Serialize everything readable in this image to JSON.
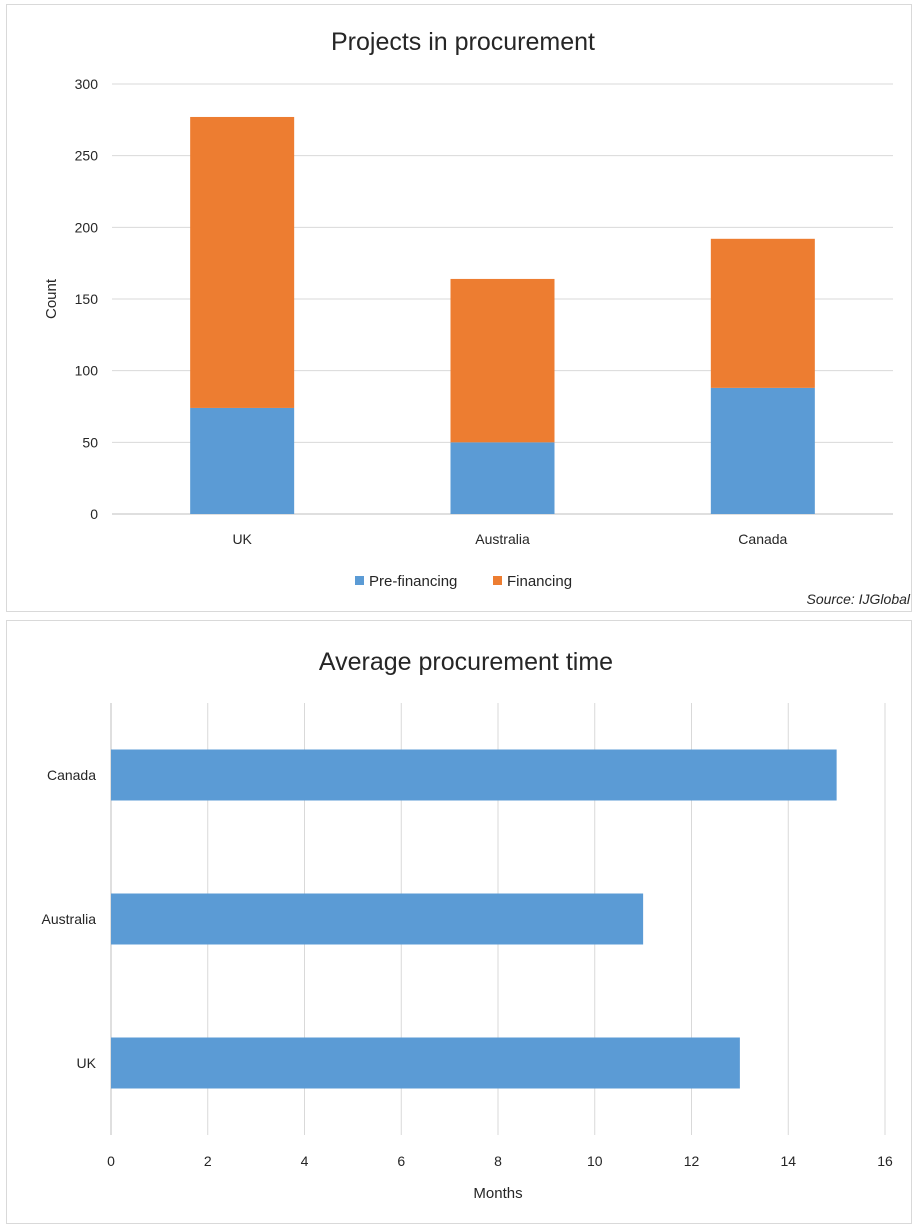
{
  "chart_data": [
    {
      "type": "bar",
      "orientation": "vertical",
      "stacked": true,
      "title": "Projects in procurement",
      "xlabel": "",
      "ylabel": "Count",
      "categories": [
        "UK",
        "Australia",
        "Canada"
      ],
      "series": [
        {
          "name": "Pre-financing",
          "color": "#5b9bd5",
          "values": [
            74,
            50,
            88
          ]
        },
        {
          "name": "Financing",
          "color": "#ed7d31",
          "values": [
            203,
            114,
            104
          ]
        }
      ],
      "ylim": [
        0,
        300
      ],
      "yticks": [
        0,
        50,
        100,
        150,
        200,
        250,
        300
      ],
      "grid": true,
      "legend_position": "bottom",
      "source_note": "Source: IJGlobal"
    },
    {
      "type": "bar",
      "orientation": "horizontal",
      "title": "Average procurement time",
      "xlabel": "Months",
      "ylabel": "",
      "categories": [
        "UK",
        "Australia",
        "Canada"
      ],
      "series": [
        {
          "color": "#5b9bd5",
          "values": [
            13,
            11,
            15
          ]
        }
      ],
      "xlim": [
        0,
        16
      ],
      "xticks": [
        0,
        2,
        4,
        6,
        8,
        10,
        12,
        14,
        16
      ],
      "grid": true
    }
  ]
}
